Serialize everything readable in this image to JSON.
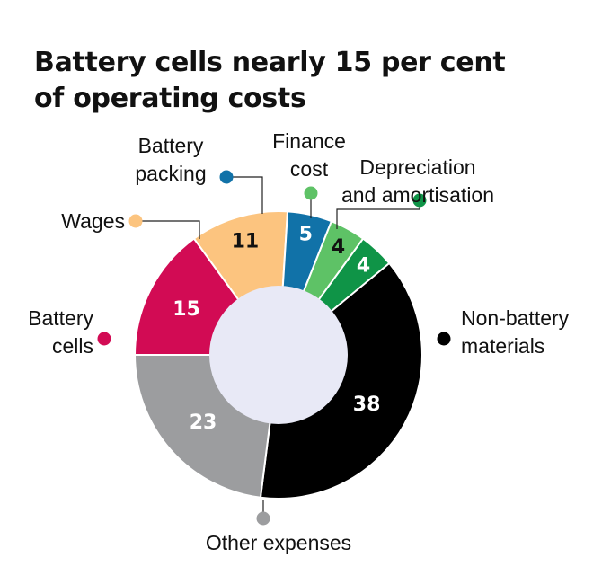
{
  "chart_data": {
    "type": "pie",
    "title": [
      "Battery cells nearly 15 per cent",
      "of operating costs"
    ],
    "slices": [
      {
        "name": "Depreciation and amortisation",
        "label_lines": [
          "Depreciation",
          "and amortisation"
        ],
        "value": 4,
        "color": "#0f9447",
        "value_color": "#ffffff"
      },
      {
        "name": "Non-battery materials",
        "label_lines": [
          "Non-battery",
          "materials"
        ],
        "value": 38,
        "color": "#000000",
        "value_color": "#ffffff"
      },
      {
        "name": "Other expenses",
        "label_lines": [
          "Other expenses"
        ],
        "value": 23,
        "color": "#9c9d9f",
        "value_color": "#ffffff"
      },
      {
        "name": "Battery cells",
        "label_lines": [
          "Battery",
          "cells"
        ],
        "value": 15,
        "color": "#d20b54",
        "value_color": "#ffffff"
      },
      {
        "name": "Wages",
        "label_lines": [
          "Wages"
        ],
        "value": 11,
        "color": "#fcc47f",
        "value_color": "#111111"
      },
      {
        "name": "Battery packing",
        "label_lines": [
          "Battery",
          "packing"
        ],
        "value": 5,
        "color": "#1172a8",
        "value_color": "#ffffff"
      },
      {
        "name": "Finance cost",
        "label_lines": [
          "Finance",
          "cost"
        ],
        "value": 4,
        "color": "#5ec266",
        "value_color": "#111111"
      }
    ],
    "center_color": "#e8e9f6",
    "legend": "callout labels around the donut"
  }
}
